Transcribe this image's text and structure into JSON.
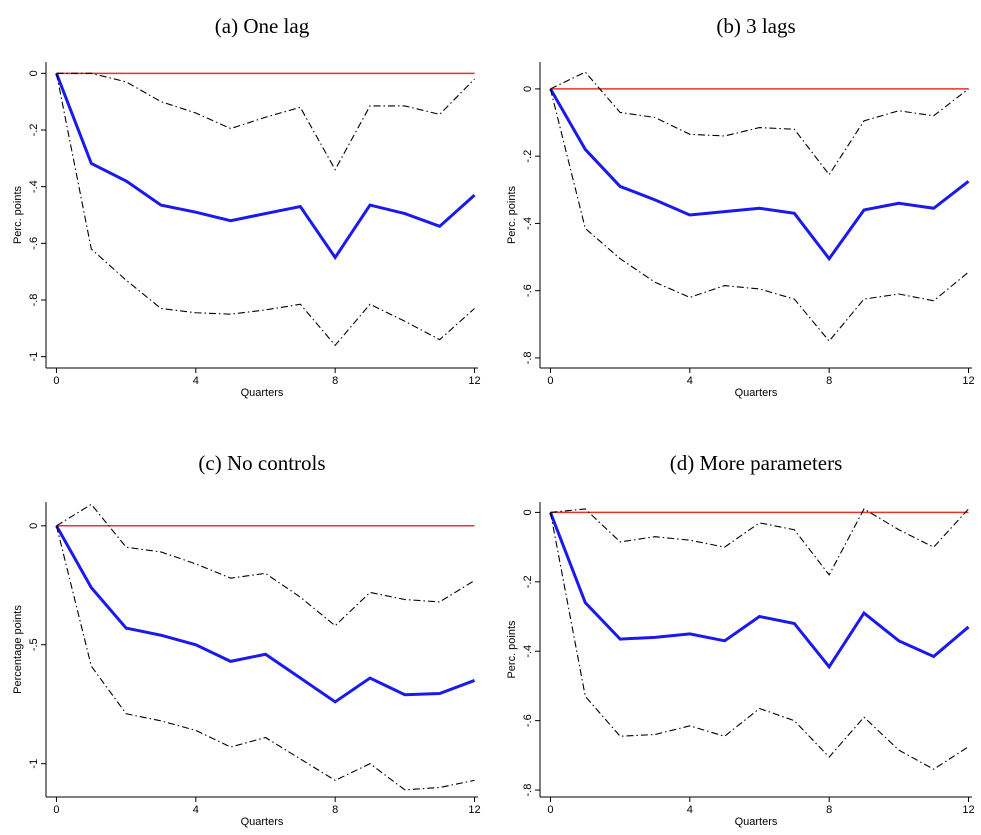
{
  "chart_data": [
    {
      "type": "line",
      "title": "(a) One lag",
      "xlabel": "Quarters",
      "ylabel": "Perc. points",
      "x": [
        0,
        1,
        2,
        3,
        4,
        5,
        6,
        7,
        8,
        9,
        10,
        11,
        12
      ],
      "xlim": [
        -0.3,
        12.1
      ],
      "xticks": [
        0,
        4,
        8,
        12
      ],
      "ylim": [
        -1.04,
        0.04
      ],
      "yticks": [
        {
          "value": -1,
          "label": "-1"
        },
        {
          "value": -0.8,
          "label": "-.8"
        },
        {
          "value": -0.6,
          "label": "-.6"
        },
        {
          "value": -0.4,
          "label": "-.4"
        },
        {
          "value": -0.2,
          "label": "-.2"
        },
        0
      ],
      "hline": 0,
      "hline_color": "#e8322a",
      "series": [
        {
          "color": "#1a1aeb",
          "style": "solid",
          "values": [
            0,
            -0.318,
            -0.38,
            -0.465,
            -0.49,
            -0.52,
            -0.495,
            -0.47,
            -0.65,
            -0.465,
            -0.495,
            -0.54,
            -0.43
          ]
        },
        {
          "color": "#000000",
          "style": "dashdot",
          "values": [
            0,
            0,
            -0.03,
            -0.1,
            -0.14,
            -0.195,
            -0.155,
            -0.12,
            -0.34,
            -0.115,
            -0.115,
            -0.145,
            -0.02
          ]
        },
        {
          "color": "#000000",
          "style": "dashdot",
          "values": [
            0,
            -0.62,
            -0.73,
            -0.83,
            -0.845,
            -0.85,
            -0.835,
            -0.815,
            -0.96,
            -0.815,
            -0.875,
            -0.94,
            -0.83
          ]
        }
      ]
    },
    {
      "type": "line",
      "title": "(b) 3 lags",
      "xlabel": "Quarters",
      "ylabel": "Perc. points",
      "x": [
        0,
        1,
        2,
        3,
        4,
        5,
        6,
        7,
        8,
        9,
        10,
        11,
        12
      ],
      "xlim": [
        -0.3,
        12.1
      ],
      "xticks": [
        0,
        4,
        8,
        12
      ],
      "ylim": [
        -0.83,
        0.08
      ],
      "yticks": [
        {
          "value": -0.8,
          "label": "-.8"
        },
        {
          "value": -0.6,
          "label": "-.6"
        },
        {
          "value": -0.4,
          "label": "-.4"
        },
        {
          "value": -0.2,
          "label": "-.2"
        },
        0
      ],
      "hline": 0,
      "hline_color": "#e8322a",
      "series": [
        {
          "color": "#1a1aeb",
          "style": "solid",
          "values": [
            0,
            -0.18,
            -0.29,
            -0.33,
            -0.375,
            -0.365,
            -0.355,
            -0.37,
            -0.505,
            -0.36,
            -0.34,
            -0.355,
            -0.275
          ]
        },
        {
          "color": "#000000",
          "style": "dashdot",
          "values": [
            0,
            0.05,
            -0.07,
            -0.085,
            -0.135,
            -0.14,
            -0.115,
            -0.12,
            -0.255,
            -0.095,
            -0.065,
            -0.08,
            0
          ]
        },
        {
          "color": "#000000",
          "style": "dashdot",
          "values": [
            0,
            -0.415,
            -0.505,
            -0.575,
            -0.62,
            -0.585,
            -0.595,
            -0.625,
            -0.75,
            -0.625,
            -0.61,
            -0.63,
            -0.545
          ]
        }
      ]
    },
    {
      "type": "line",
      "title": "(c) No controls",
      "xlabel": "Quarters",
      "ylabel": "Percentage points",
      "x": [
        0,
        1,
        2,
        3,
        4,
        5,
        6,
        7,
        8,
        9,
        10,
        11,
        12
      ],
      "xlim": [
        -0.3,
        12.1
      ],
      "xticks": [
        0,
        4,
        8,
        12
      ],
      "ylim": [
        -1.14,
        0.1
      ],
      "yticks": [
        -1,
        {
          "value": -0.5,
          "label": "-.5"
        },
        0
      ],
      "hline": 0,
      "hline_color": "#e8322a",
      "series": [
        {
          "color": "#1a1aeb",
          "style": "solid",
          "values": [
            0,
            -0.26,
            -0.43,
            -0.46,
            -0.5,
            -0.57,
            -0.54,
            -0.64,
            -0.74,
            -0.64,
            -0.71,
            -0.705,
            -0.65
          ]
        },
        {
          "color": "#000000",
          "style": "dashdot",
          "values": [
            0,
            0.09,
            -0.09,
            -0.11,
            -0.16,
            -0.22,
            -0.2,
            -0.3,
            -0.42,
            -0.28,
            -0.31,
            -0.32,
            -0.23
          ]
        },
        {
          "color": "#000000",
          "style": "dashdot",
          "values": [
            0,
            -0.59,
            -0.79,
            -0.82,
            -0.86,
            -0.93,
            -0.89,
            -0.98,
            -1.07,
            -1,
            -1.11,
            -1.1,
            -1.07
          ]
        }
      ]
    },
    {
      "type": "line",
      "title": "(d) More parameters",
      "xlabel": "Quarters",
      "ylabel": "Perc. points",
      "x": [
        0,
        1,
        2,
        3,
        4,
        5,
        6,
        7,
        8,
        9,
        10,
        11,
        12
      ],
      "xlim": [
        -0.3,
        12.1
      ],
      "xticks": [
        0,
        4,
        8,
        12
      ],
      "ylim": [
        -0.82,
        0.03
      ],
      "yticks": [
        {
          "value": -0.8,
          "label": "-.8"
        },
        {
          "value": -0.6,
          "label": "-.6"
        },
        {
          "value": -0.4,
          "label": "-.4"
        },
        {
          "value": -0.2,
          "label": "-.2"
        },
        0
      ],
      "hline": 0,
      "hline_color": "#e8322a",
      "series": [
        {
          "color": "#1a1aeb",
          "style": "solid",
          "values": [
            0,
            -0.26,
            -0.365,
            -0.36,
            -0.35,
            -0.37,
            -0.3,
            -0.32,
            -0.445,
            -0.29,
            -0.37,
            -0.415,
            -0.33
          ]
        },
        {
          "color": "#000000",
          "style": "dashdot",
          "values": [
            0,
            0.01,
            -0.085,
            -0.07,
            -0.08,
            -0.1,
            -0.03,
            -0.05,
            -0.18,
            0.01,
            -0.05,
            -0.1,
            0.01
          ]
        },
        {
          "color": "#000000",
          "style": "dashdot",
          "values": [
            0,
            -0.53,
            -0.645,
            -0.64,
            -0.615,
            -0.645,
            -0.565,
            -0.6,
            -0.705,
            -0.59,
            -0.685,
            -0.74,
            -0.675
          ]
        }
      ]
    }
  ]
}
